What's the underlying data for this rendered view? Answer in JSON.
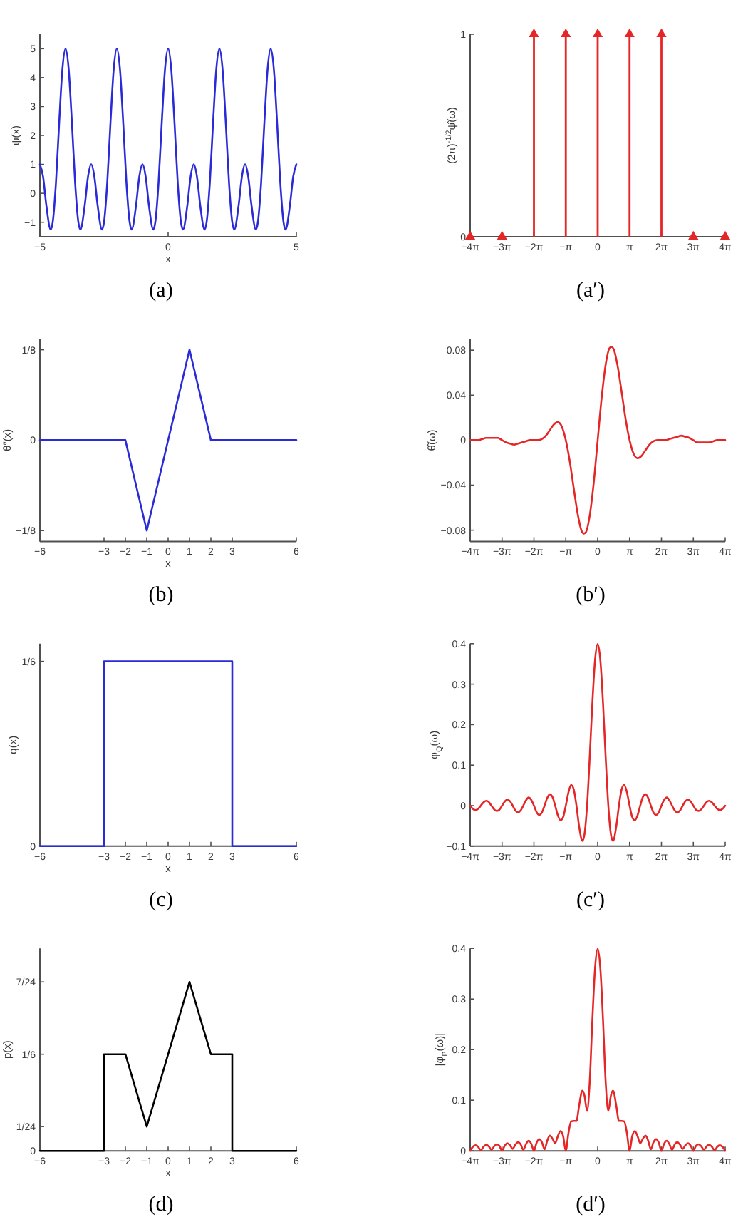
{
  "chart_data": [
    {
      "type": "line",
      "annotations": [
        "(a)"
      ],
      "xlabel": "x",
      "ylabel": "ψ(x)",
      "color": "#2a2ad8",
      "xlim": [
        -5,
        5
      ],
      "ylim": [
        -1.5,
        5.5
      ],
      "xticks": [
        -5,
        0,
        5
      ],
      "yticks": [
        -1,
        0,
        1,
        2,
        3,
        4,
        5
      ],
      "x": [
        -5,
        -4.875,
        -4.75,
        -4.58,
        -4.5,
        -4.375,
        -4.25,
        -4.125,
        -4,
        -3.875,
        -3.75,
        -3.625,
        -3.5,
        -3.42,
        -3.25,
        -3.125,
        -3,
        -2.875,
        -2.75,
        -2.58,
        -2.5,
        -2.375,
        -2.25,
        -2.125,
        -2,
        -1.875,
        -1.75,
        -1.625,
        -1.5,
        -1.42,
        -1.25,
        -1.125,
        -1,
        -0.875,
        -0.75,
        -0.58,
        -0.5,
        -0.375,
        -0.25,
        -0.125,
        0,
        0.125,
        0.25,
        0.375,
        0.5,
        0.58,
        0.75,
        0.875,
        1,
        1.125,
        1.25,
        1.42,
        1.5,
        1.625,
        1.75,
        1.875,
        2,
        2.125,
        2.25,
        2.375,
        2.5,
        2.58,
        2.75,
        2.875,
        3,
        3.125,
        3.25,
        3.42,
        3.5,
        3.625,
        3.75,
        3.875,
        4,
        4.125,
        4.25,
        4.375,
        4.5,
        4.58,
        4.75,
        4.875,
        5
      ],
      "values": [
        1,
        0.57,
        -0.41,
        -1.25,
        -1,
        0.35,
        2.41,
        4.26,
        5,
        4.26,
        2.41,
        0.35,
        -1,
        -1.25,
        -0.41,
        0.57,
        1,
        0.57,
        -0.41,
        -1.25,
        -1,
        0.35,
        2.41,
        4.26,
        5,
        4.26,
        2.41,
        0.35,
        -1,
        -1.25,
        -0.41,
        0.57,
        1,
        0.57,
        -0.41,
        -1.25,
        -1,
        0.35,
        2.41,
        4.26,
        5,
        4.26,
        2.41,
        0.35,
        -1,
        -1.25,
        -0.41,
        0.57,
        1,
        0.57,
        -0.41,
        -1.25,
        -1,
        0.35,
        2.41,
        4.26,
        5,
        4.26,
        2.41,
        0.35,
        -1,
        -1.25,
        -0.41,
        0.57,
        1,
        0.57,
        -0.41,
        -1.25,
        -1,
        0.35,
        2.41,
        4.26,
        5,
        4.26,
        2.41,
        0.35,
        -1,
        -1.25,
        -0.41,
        0.57,
        1
      ]
    },
    {
      "type": "lollipop",
      "marker": "triangle",
      "annotations": [
        "(a′)"
      ],
      "ylabel": "(2π)$^{-1/2}$ψ̂(ω)",
      "color": "#e52626",
      "xlim": [
        -12.566,
        12.566
      ],
      "ylim": [
        0,
        1
      ],
      "xticks": [
        {
          "value": -12.566,
          "label": "−4π"
        },
        {
          "value": -9.425,
          "label": "−3π"
        },
        {
          "value": -6.283,
          "label": "−2π"
        },
        {
          "value": -3.142,
          "label": "−π"
        },
        0,
        {
          "value": 3.142,
          "label": "π"
        },
        {
          "value": 6.283,
          "label": "2π"
        },
        {
          "value": 9.425,
          "label": "3π"
        },
        {
          "value": 12.566,
          "label": "4π"
        }
      ],
      "yticks": [
        0,
        1
      ],
      "x": [
        -12.566,
        -9.425,
        -6.283,
        -3.142,
        0,
        3.142,
        6.283,
        9.425,
        12.566
      ],
      "values": [
        0,
        0,
        1,
        1,
        1,
        1,
        1,
        0,
        0
      ]
    },
    {
      "type": "line",
      "annotations": [
        "(b)"
      ],
      "xlabel": "x",
      "ylabel": "θ″(x)",
      "color": "#2a2ad8",
      "xlim": [
        -6,
        6
      ],
      "ylim": [
        -0.14,
        0.14
      ],
      "xticks": [
        -6,
        -3,
        -2,
        -1,
        0,
        1,
        2,
        3,
        6
      ],
      "yticks": [
        {
          "value": -0.125,
          "label": "−1/8"
        },
        0,
        {
          "value": 0.125,
          "label": "1/8"
        }
      ],
      "x": [
        -6,
        -2,
        -1,
        1,
        2,
        6
      ],
      "values": [
        0,
        0,
        -0.125,
        0.125,
        0,
        0
      ]
    },
    {
      "type": "line",
      "annotations": [
        "(b′)"
      ],
      "ylabel": "θ̂(ω)",
      "color": "#e52626",
      "xlim": [
        -12.566,
        12.566
      ],
      "ylim": [
        -0.09,
        0.09
      ],
      "xticks": [
        {
          "value": -12.566,
          "label": "−4π"
        },
        {
          "value": -9.425,
          "label": "−3π"
        },
        {
          "value": -6.283,
          "label": "−2π"
        },
        {
          "value": -3.142,
          "label": "−π"
        },
        0,
        {
          "value": 3.142,
          "label": "π"
        },
        {
          "value": 6.283,
          "label": "2π"
        },
        {
          "value": 9.425,
          "label": "3π"
        },
        {
          "value": 12.566,
          "label": "4π"
        }
      ],
      "yticks": [
        -0.08,
        -0.04,
        0,
        0.04,
        0.08
      ],
      "x": [
        -12.566,
        -12.174,
        -11.781,
        -11.388,
        -10.996,
        -10.603,
        -10.21,
        -9.817,
        -9.425,
        -9.032,
        -8.639,
        -8.247,
        -7.854,
        -7.461,
        -7.069,
        -6.676,
        -6.283,
        -5.89,
        -5.498,
        -5.105,
        -4.712,
        -4.32,
        -3.927,
        -3.534,
        -3.142,
        -2.749,
        -2.356,
        -1.963,
        -1.571,
        -1.351,
        -1.178,
        -0.785,
        -0.393,
        0,
        0.393,
        0.785,
        1.178,
        1.351,
        1.571,
        1.963,
        2.356,
        2.749,
        3.142,
        3.534,
        3.927,
        4.32,
        4.712,
        5.105,
        5.498,
        5.89,
        6.283,
        6.676,
        7.069,
        7.461,
        7.854,
        8.247,
        8.639,
        9.032,
        9.425,
        9.817,
        10.21,
        10.603,
        10.996,
        11.388,
        11.781,
        12.174,
        12.566
      ],
      "values": [
        0,
        0,
        0,
        0.001,
        0.002,
        0.002,
        0.002,
        0.002,
        0,
        -0.002,
        -0.003,
        -0.004,
        -0.003,
        -0.002,
        -0.001,
        0,
        0,
        0,
        0.001,
        0.004,
        0.009,
        0.014,
        0.016,
        0.012,
        0,
        -0.019,
        -0.043,
        -0.066,
        -0.081,
        -0.083,
        -0.082,
        -0.067,
        -0.038,
        0,
        0.038,
        0.067,
        0.082,
        0.083,
        0.081,
        0.066,
        0.043,
        0.019,
        0,
        -0.012,
        -0.016,
        -0.014,
        -0.009,
        -0.004,
        -0.001,
        0,
        0,
        0,
        0.001,
        0.002,
        0.003,
        0.004,
        0.003,
        0.002,
        0,
        -0.002,
        -0.002,
        -0.002,
        -0.002,
        -0.001,
        0,
        0,
        0
      ]
    },
    {
      "type": "line",
      "annotations": [
        "(c)"
      ],
      "xlabel": "x",
      "ylabel": "q(x)",
      "color": "#2a2ad8",
      "xlim": [
        -6,
        6
      ],
      "ylim": [
        0,
        0.183
      ],
      "xticks": [
        -6,
        -3,
        -2,
        -1,
        0,
        1,
        2,
        3,
        6
      ],
      "yticks": [
        0,
        {
          "value": 0.167,
          "label": "1/6"
        }
      ],
      "x": [
        -6,
        -3,
        -3,
        3,
        3,
        6
      ],
      "values": [
        0,
        0,
        0.167,
        0.167,
        0,
        0
      ]
    },
    {
      "type": "line",
      "annotations": [
        "(c′)"
      ],
      "ylabel": "φ$_{Q}$(ω)",
      "color": "#e52626",
      "xlim": [
        -12.566,
        12.566
      ],
      "ylim": [
        -0.1,
        0.4
      ],
      "xticks": [
        {
          "value": -12.566,
          "label": "−4π"
        },
        {
          "value": -9.425,
          "label": "−3π"
        },
        {
          "value": -6.283,
          "label": "−2π"
        },
        {
          "value": -3.142,
          "label": "−π"
        },
        0,
        {
          "value": 3.142,
          "label": "π"
        },
        {
          "value": 6.283,
          "label": "2π"
        },
        {
          "value": 9.425,
          "label": "3π"
        },
        {
          "value": 12.566,
          "label": "4π"
        }
      ],
      "yticks": [
        -0.1,
        0,
        0.1,
        0.2,
        0.3,
        0.4
      ],
      "x": [
        -12.566,
        -12.305,
        -12.043,
        -11.781,
        -11.519,
        -11.257,
        -10.996,
        -10.734,
        -10.472,
        -10.21,
        -9.948,
        -9.687,
        -9.425,
        -9.163,
        -8.901,
        -8.639,
        -8.378,
        -8.116,
        -7.854,
        -7.592,
        -7.33,
        -7.069,
        -6.807,
        -6.545,
        -6.283,
        -6.021,
        -5.76,
        -5.498,
        -5.236,
        -4.974,
        -4.712,
        -4.451,
        -4.189,
        -3.927,
        -3.665,
        -3.403,
        -3.142,
        -2.88,
        -2.618,
        -2.356,
        -2.094,
        -1.833,
        -1.571,
        -1.498,
        -1.309,
        -1.047,
        -0.785,
        -0.524,
        -0.262,
        0,
        0.262,
        0.524,
        0.785,
        1.047,
        1.309,
        1.498,
        1.571,
        1.833,
        2.094,
        2.356,
        2.618,
        2.88,
        3.142,
        3.403,
        3.665,
        3.927,
        4.189,
        4.451,
        4.712,
        4.974,
        5.236,
        5.498,
        5.76,
        6.021,
        6.283,
        6.545,
        6.807,
        7.069,
        7.33,
        7.592,
        7.854,
        8.116,
        8.378,
        8.639,
        8.901,
        9.163,
        9.425,
        9.687,
        9.948,
        10.21,
        10.472,
        10.734,
        10.996,
        11.257,
        11.519,
        11.781,
        12.043,
        12.305,
        12.566
      ],
      "values": [
        0,
        -0.008,
        -0.011,
        -0.008,
        0,
        0.008,
        0.012,
        0.009,
        0,
        -0.009,
        -0.013,
        -0.01,
        0,
        0.01,
        0.015,
        0.011,
        0,
        -0.012,
        -0.017,
        -0.012,
        0,
        0.013,
        0.02,
        0.014,
        0,
        -0.016,
        -0.023,
        -0.017,
        0,
        0.019,
        0.028,
        0.021,
        0,
        -0.024,
        -0.036,
        -0.028,
        0,
        0.033,
        0.051,
        0.04,
        0,
        -0.051,
        -0.085,
        -0.087,
        -0.072,
        0,
        0.12,
        0.254,
        0.359,
        0.399,
        0.359,
        0.254,
        0.12,
        0,
        -0.072,
        -0.087,
        -0.085,
        -0.051,
        0,
        0.04,
        0.051,
        0.033,
        0,
        -0.028,
        -0.036,
        -0.024,
        0,
        0.021,
        0.028,
        0.019,
        0,
        -0.017,
        -0.023,
        -0.016,
        0,
        0.014,
        0.02,
        0.013,
        0,
        -0.012,
        -0.017,
        -0.012,
        0,
        0.011,
        0.015,
        0.01,
        0,
        -0.01,
        -0.013,
        -0.009,
        0,
        0.009,
        0.012,
        0.008,
        0,
        -0.008,
        -0.011,
        -0.008,
        0
      ]
    },
    {
      "type": "line",
      "annotations": [
        "(d)"
      ],
      "xlabel": "x",
      "ylabel": "p(x)",
      "color": "#000000",
      "xlim": [
        -6,
        6
      ],
      "ylim": [
        0,
        0.35
      ],
      "xticks": [
        -6,
        -3,
        -2,
        -1,
        0,
        1,
        2,
        3,
        6
      ],
      "yticks": [
        0,
        {
          "value": 0.042,
          "label": "1/24"
        },
        {
          "value": 0.167,
          "label": "1/6"
        },
        {
          "value": 0.292,
          "label": "7/24"
        }
      ],
      "x": [
        -6,
        -3,
        -3,
        -2,
        -1,
        1,
        2,
        3,
        3,
        6
      ],
      "values": [
        0,
        0,
        0.167,
        0.167,
        0.042,
        0.292,
        0.167,
        0.167,
        0,
        0
      ]
    },
    {
      "type": "line",
      "annotations": [
        "(d′)"
      ],
      "ylabel": "|φ$_{P}$(ω)|",
      "color": "#e52626",
      "xlim": [
        -12.566,
        12.566
      ],
      "ylim": [
        0,
        0.4
      ],
      "xticks": [
        {
          "value": -12.566,
          "label": "−4π"
        },
        {
          "value": -9.425,
          "label": "−3π"
        },
        {
          "value": -6.283,
          "label": "−2π"
        },
        {
          "value": -3.142,
          "label": "−π"
        },
        0,
        {
          "value": 3.142,
          "label": "π"
        },
        {
          "value": 6.283,
          "label": "2π"
        },
        {
          "value": 9.425,
          "label": "3π"
        },
        {
          "value": 12.566,
          "label": "4π"
        }
      ],
      "yticks": [
        0,
        0.1,
        0.2,
        0.3,
        0.4
      ],
      "x": [
        -12.566,
        -12.305,
        -12.043,
        -11.781,
        -11.519,
        -11.257,
        -10.996,
        -10.734,
        -10.472,
        -10.21,
        -9.948,
        -9.687,
        -9.425,
        -9.163,
        -8.901,
        -8.639,
        -8.378,
        -8.116,
        -7.854,
        -7.592,
        -7.33,
        -7.069,
        -6.807,
        -6.545,
        -6.283,
        -6.021,
        -5.76,
        -5.498,
        -5.236,
        -4.974,
        -4.712,
        -4.451,
        -4.189,
        -3.927,
        -3.665,
        -3.403,
        -3.142,
        -2.88,
        -2.618,
        -2.356,
        -2.094,
        -1.833,
        -1.571,
        -1.498,
        -1.309,
        -1.047,
        -0.785,
        -0.524,
        -0.262,
        0,
        0.262,
        0.524,
        0.785,
        1.047,
        1.309,
        1.498,
        1.571,
        1.833,
        2.094,
        2.356,
        2.618,
        2.88,
        3.142,
        3.403,
        3.665,
        3.927,
        4.189,
        4.451,
        4.712,
        4.974,
        5.236,
        5.498,
        5.76,
        6.021,
        6.283,
        6.545,
        6.807,
        7.069,
        7.33,
        7.592,
        7.854,
        8.116,
        8.378,
        8.639,
        8.901,
        9.163,
        9.425,
        9.687,
        9.948,
        10.21,
        10.472,
        10.734,
        10.996,
        11.257,
        11.519,
        11.781,
        12.043,
        12.305,
        12.566
      ],
      "values": [
        0,
        0.008,
        0.011,
        0.008,
        0.001,
        0.008,
        0.012,
        0.009,
        0.002,
        0.009,
        0.013,
        0.01,
        0,
        0.01,
        0.015,
        0.011,
        0.004,
        0.012,
        0.017,
        0.013,
        0.002,
        0.013,
        0.02,
        0.014,
        0,
        0.016,
        0.023,
        0.017,
        0.003,
        0.02,
        0.03,
        0.024,
        0.015,
        0.029,
        0.039,
        0.029,
        0,
        0.035,
        0.058,
        0.059,
        0.059,
        0.089,
        0.117,
        0.119,
        0.11,
        0.079,
        0.137,
        0.259,
        0.36,
        0.399,
        0.36,
        0.259,
        0.137,
        0.079,
        0.11,
        0.119,
        0.117,
        0.089,
        0.059,
        0.059,
        0.058,
        0.035,
        0,
        0.029,
        0.039,
        0.029,
        0.015,
        0.024,
        0.03,
        0.02,
        0.003,
        0.017,
        0.023,
        0.016,
        0,
        0.014,
        0.02,
        0.013,
        0.002,
        0.013,
        0.017,
        0.012,
        0.004,
        0.011,
        0.015,
        0.01,
        0,
        0.01,
        0.013,
        0.009,
        0.002,
        0.009,
        0.012,
        0.008,
        0.001,
        0.008,
        0.011,
        0.008,
        0
      ]
    }
  ]
}
